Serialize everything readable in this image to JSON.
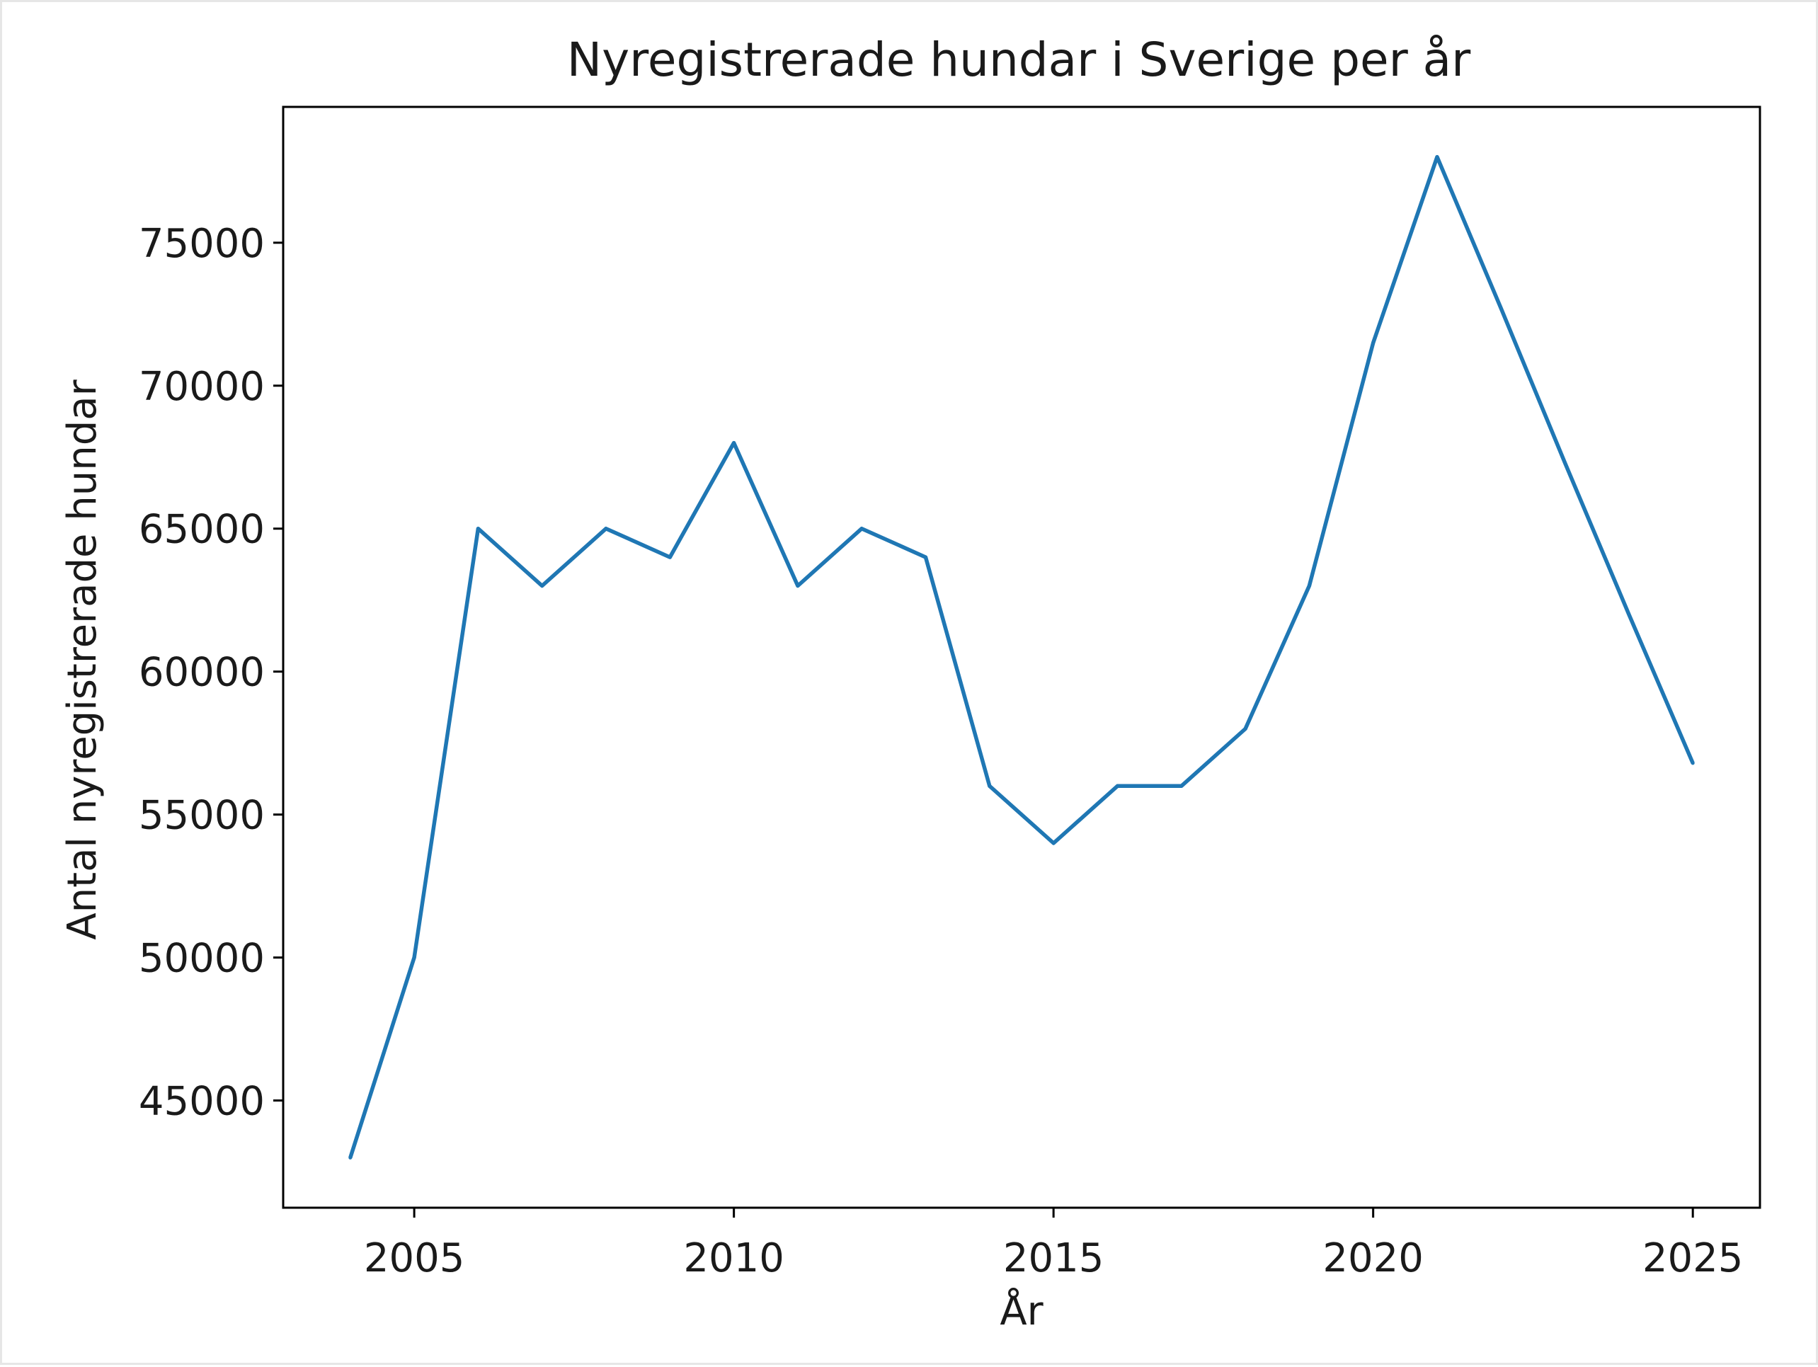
{
  "chart_data": {
    "type": "line",
    "title": "Nyregistrerade hundar i Sverige per år",
    "xlabel": "År",
    "ylabel": "Antal nyregistrerade hundar",
    "x": [
      2004,
      2005,
      2006,
      2007,
      2008,
      2009,
      2010,
      2011,
      2012,
      2013,
      2014,
      2015,
      2016,
      2017,
      2018,
      2019,
      2020,
      2021,
      2022,
      2023,
      2024,
      2025
    ],
    "series": [
      {
        "color": "#1f77b4",
        "values": [
          43000,
          50000,
          65000,
          63000,
          65000,
          64000,
          68000,
          63000,
          65000,
          64000,
          56000,
          54000,
          56000,
          56000,
          58000,
          63000,
          71500,
          78000,
          72700,
          67300,
          62000,
          56800
        ]
      }
    ],
    "xlim": [
      2002.95,
      2026.05
    ],
    "ylim": [
      41250,
      79750
    ],
    "x_ticks": [
      2005,
      2010,
      2015,
      2020,
      2025
    ],
    "x_tick_labels": [
      "2005",
      "2010",
      "2015",
      "2020",
      "2025"
    ],
    "y_ticks": [
      45000,
      50000,
      55000,
      60000,
      65000,
      70000,
      75000
    ],
    "y_tick_labels": [
      "45000",
      "50000",
      "55000",
      "60000",
      "65000",
      "70000",
      "75000"
    ],
    "grid": false,
    "legend": "none"
  }
}
